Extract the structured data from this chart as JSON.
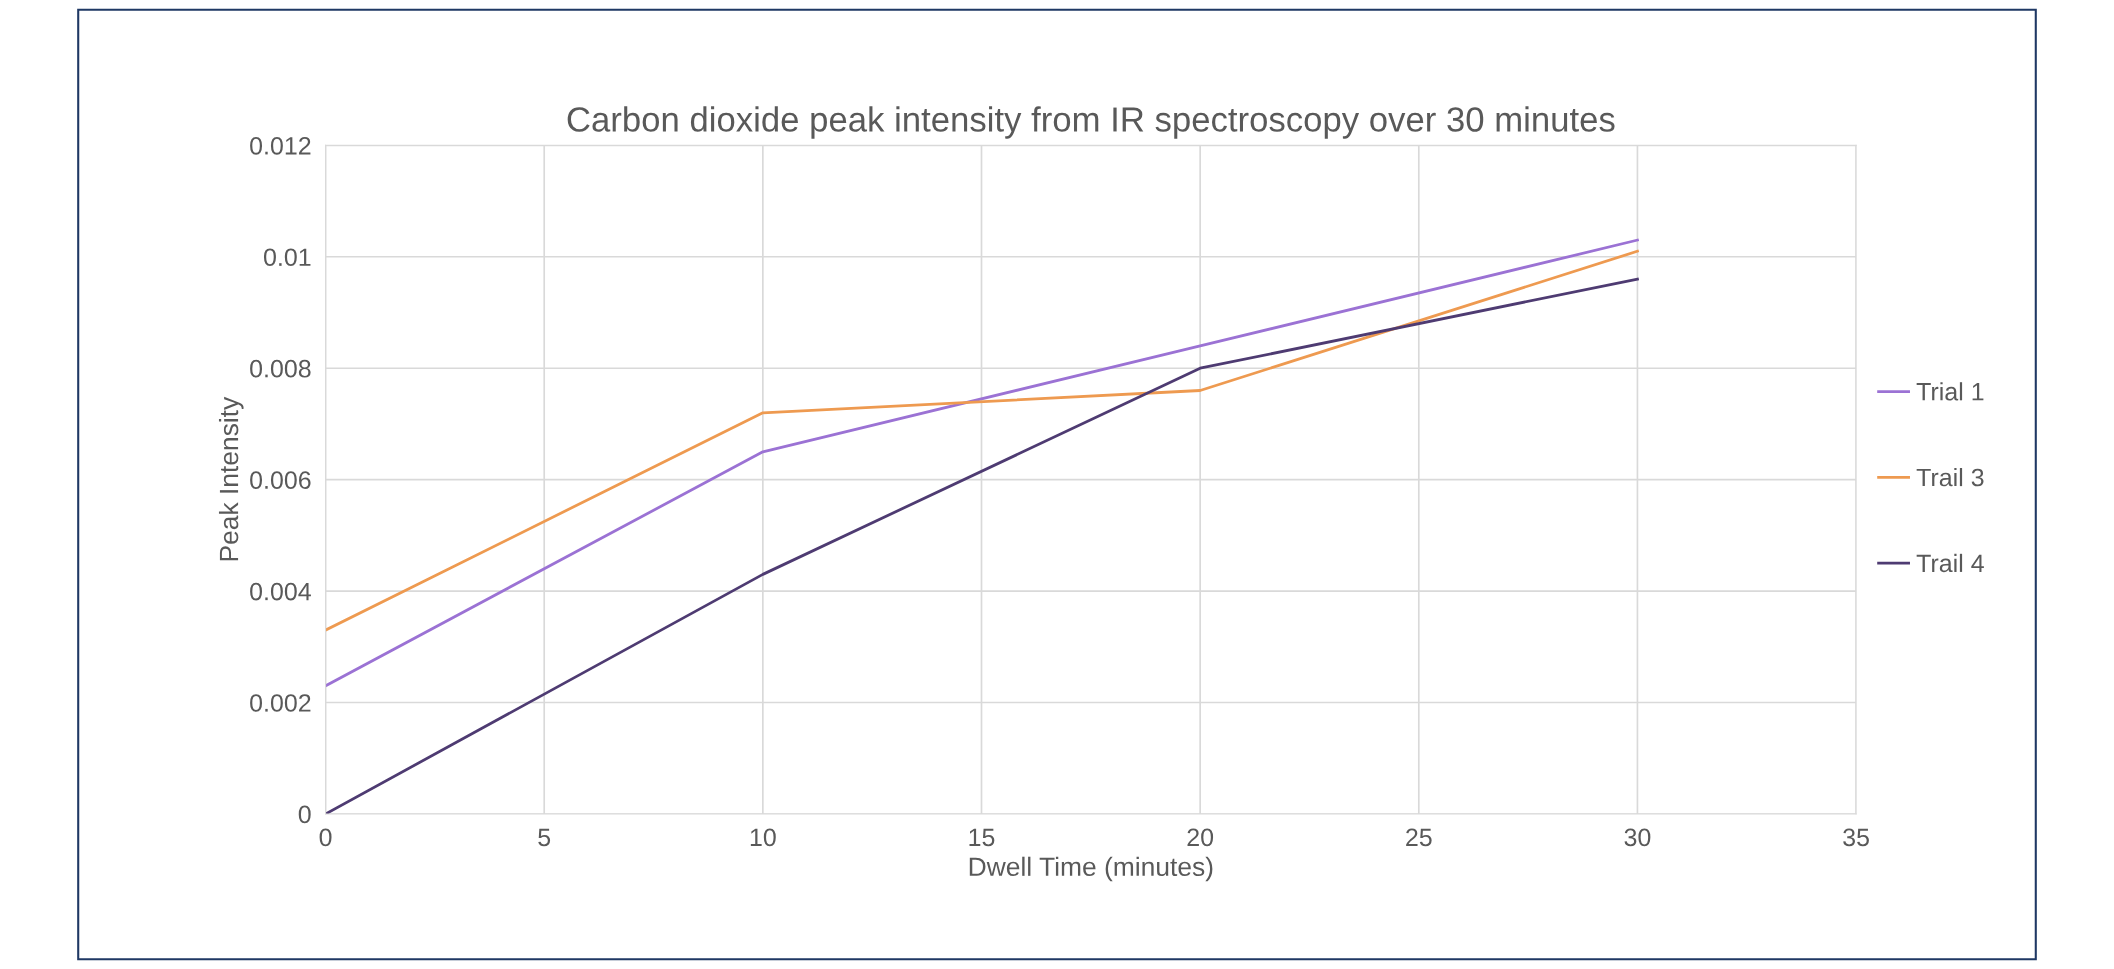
{
  "chart_data": {
    "type": "line",
    "title": "Carbon dioxide peak intensity from IR spectroscopy over 30 minutes",
    "xlabel": "Dwell Time (minutes)",
    "ylabel": "Peak Intensity",
    "x": [
      0,
      10,
      20,
      30
    ],
    "series": [
      {
        "name": "Trial 1",
        "color": "#9b72d4",
        "values": [
          0.0023,
          0.0065,
          0.0084,
          0.0103
        ]
      },
      {
        "name": "Trail 3",
        "color": "#ee9a50",
        "values": [
          0.0033,
          0.0072,
          0.0076,
          0.0101
        ]
      },
      {
        "name": "Trail 4",
        "color": "#4e3b72",
        "values": [
          0,
          0.0043,
          0.008,
          0.0096
        ]
      }
    ],
    "xlim": [
      0,
      35
    ],
    "xticks": [
      0,
      5,
      10,
      15,
      20,
      25,
      30,
      35
    ],
    "ylim": [
      0,
      0.012
    ],
    "yticks": [
      0,
      0.002,
      0.004,
      0.006,
      0.008,
      0.01,
      0.012
    ],
    "grid": true,
    "legend": "right",
    "marker": "none",
    "line_style": "solid"
  }
}
